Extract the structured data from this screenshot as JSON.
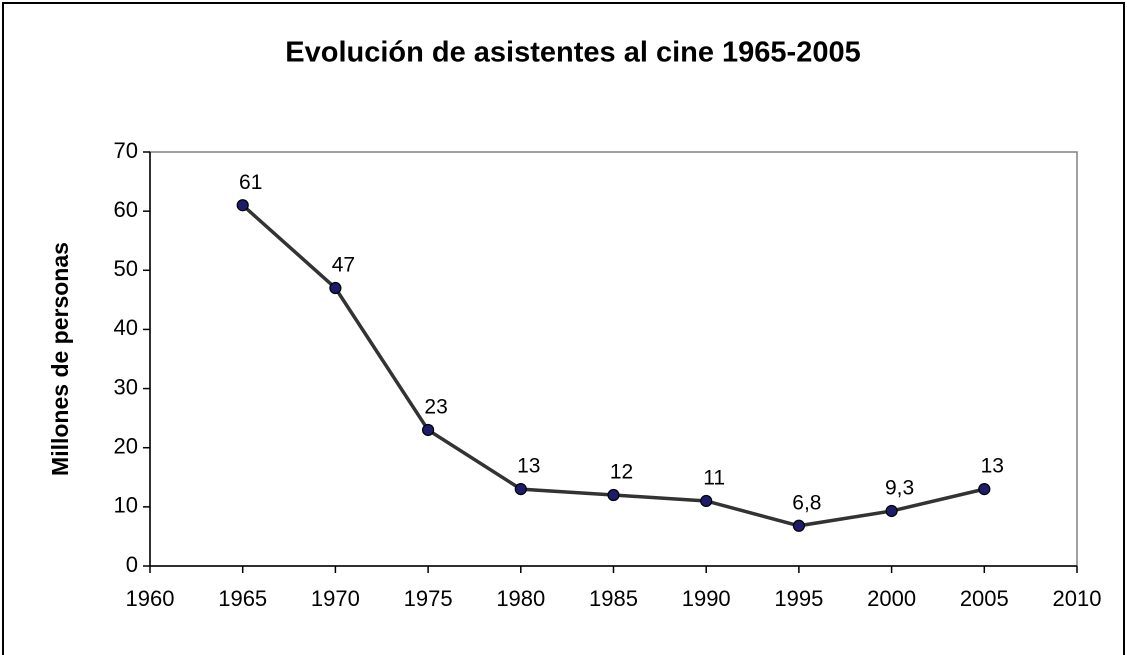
{
  "chart_data": {
    "type": "line",
    "title": "Evolución de asistentes al cine 1965-2005",
    "y_label": "Millones de personas",
    "x": [
      1965,
      1970,
      1975,
      1980,
      1985,
      1990,
      1995,
      2000,
      2005
    ],
    "values": [
      61,
      47,
      23,
      13,
      12,
      11,
      6.8,
      9.3,
      13
    ],
    "value_labels": [
      "61",
      "47",
      "23",
      "13",
      "12",
      "11",
      "6,8",
      "9,3",
      "13"
    ],
    "color": "#333333",
    "marker_color": "#1c1c6b",
    "xlim": [
      1960,
      2010
    ],
    "xticks": [
      1960,
      1965,
      1970,
      1975,
      1980,
      1985,
      1990,
      1995,
      2000,
      2005,
      2010
    ],
    "ylim": [
      0,
      70
    ],
    "yticks": [
      0,
      10,
      20,
      30,
      40,
      50,
      60,
      70
    ],
    "grid": false
  }
}
